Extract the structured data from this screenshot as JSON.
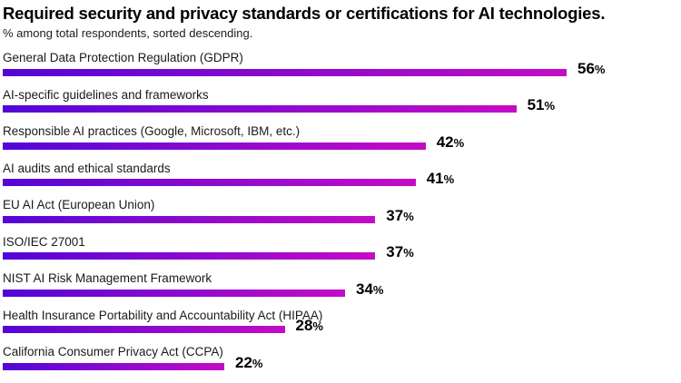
{
  "header": {
    "title": "Required security and privacy standards or certifications for AI technologies.",
    "subtitle": "% among total respondents, sorted descending."
  },
  "chart_data": {
    "type": "bar",
    "orientation": "horizontal",
    "title": "Required security and privacy standards or certifications for AI technologies.",
    "subtitle": "% among total respondents, sorted descending.",
    "categories": [
      "General Data Protection Regulation (GDPR)",
      "AI-specific guidelines and frameworks",
      "Responsible AI practices (Google, Microsoft, IBM, etc.)",
      "AI audits and ethical standards",
      "EU AI Act (European Union)",
      "ISO/IEC 27001",
      "NIST AI Risk Management Framework",
      "Health Insurance Portability and Accountability Act (HIPAA)",
      "California Consumer Privacy Act (CCPA)"
    ],
    "values": [
      56,
      51,
      42,
      41,
      37,
      37,
      34,
      28,
      22
    ],
    "unit": "%",
    "value_axis": {
      "min": 0,
      "max": 56,
      "visible": false
    },
    "grid": false,
    "legend": false,
    "value_labels_position": "right-of-bar",
    "colors": {
      "bar_gradient_start": "#5306d7",
      "bar_gradient_end": "#c50bc6",
      "value_label": "#000000",
      "category_label": "#1a1a1a",
      "title": "#000000",
      "background": "#ffffff"
    }
  }
}
